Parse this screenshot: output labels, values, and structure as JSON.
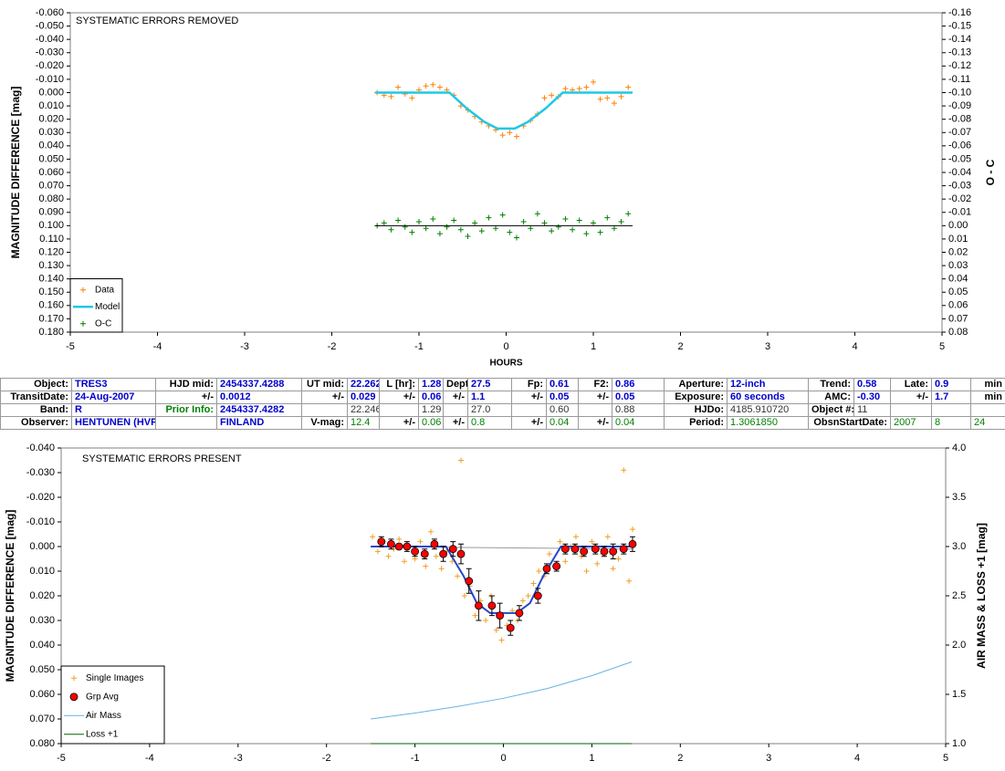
{
  "chart_data": [
    {
      "type": "scatter",
      "title": "SYSTEMATIC ERRORS REMOVED",
      "xlabel": "HOURS",
      "ylabel": "MAGNITUDE DIFFERENCE [mag]",
      "y2label": "O - C",
      "xlim": [
        -5,
        5
      ],
      "xticks": [
        -5,
        -4,
        -3,
        -2,
        -1,
        0,
        1,
        2,
        3,
        4,
        5
      ],
      "ylim": [
        -0.06,
        0.18
      ],
      "y_inverted": true,
      "yticks": [
        {
          "value": -0.06,
          "label": "-0.060"
        },
        {
          "value": -0.05,
          "label": "-0.050"
        },
        {
          "value": -0.04,
          "label": "-0.040"
        },
        {
          "value": -0.03,
          "label": "-0.030"
        },
        {
          "value": -0.02,
          "label": "-0.020"
        },
        {
          "value": -0.01,
          "label": "-0.010"
        },
        {
          "value": 0,
          "label": "0.000"
        },
        {
          "value": 0.01,
          "label": "0.010"
        },
        {
          "value": 0.02,
          "label": "0.020"
        },
        {
          "value": 0.03,
          "label": "0.030"
        },
        {
          "value": 0.04,
          "label": "0.040"
        },
        {
          "value": 0.05,
          "label": "0.050"
        },
        {
          "value": 0.06,
          "label": "0.060"
        },
        {
          "value": 0.07,
          "label": "0.070"
        },
        {
          "value": 0.08,
          "label": "0.080"
        },
        {
          "value": 0.09,
          "label": "0.090"
        },
        {
          "value": 0.1,
          "label": "0.100"
        },
        {
          "value": 0.11,
          "label": "0.110"
        },
        {
          "value": 0.12,
          "label": "0.120"
        },
        {
          "value": 0.13,
          "label": "0.130"
        },
        {
          "value": 0.14,
          "label": "0.140"
        },
        {
          "value": 0.15,
          "label": "0.150"
        },
        {
          "value": 0.16,
          "label": "0.160"
        },
        {
          "value": 0.17,
          "label": "0.170"
        },
        {
          "value": 0.18,
          "label": "0.180"
        }
      ],
      "y2lim": [
        -0.16,
        0.08
      ],
      "y2_inverted": true,
      "y2ticks": [
        -0.16,
        -0.15,
        -0.14,
        -0.13,
        -0.12,
        -0.11,
        {
          "value": -0.1,
          "label": "-0.10"
        },
        -0.09,
        -0.08,
        -0.07,
        -0.06,
        -0.05,
        -0.04,
        -0.03,
        -0.02,
        -0.01,
        {
          "value": 0,
          "label": "0.00"
        },
        0.01,
        0.02,
        0.03,
        0.04,
        0.05,
        0.06,
        0.07,
        0.08
      ],
      "legend": "lower left",
      "series": [
        {
          "name": "Data",
          "style": "plus",
          "color": "#ff8000",
          "x": [
            -1.48,
            -1.4,
            -1.32,
            -1.24,
            -1.16,
            -1.08,
            -1.0,
            -0.92,
            -0.84,
            -0.76,
            -0.68,
            -0.6,
            -0.52,
            -0.44,
            -0.36,
            -0.28,
            -0.2,
            -0.12,
            -0.04,
            0.04,
            0.12,
            0.2,
            0.28,
            0.36,
            0.44,
            0.52,
            0.6,
            0.68,
            0.76,
            0.84,
            0.92,
            1.0,
            1.08,
            1.16,
            1.24,
            1.32,
            1.4
          ],
          "values": [
            0.0,
            0.002,
            0.003,
            -0.004,
            0.001,
            0.004,
            -0.002,
            -0.005,
            -0.006,
            -0.004,
            -0.002,
            0.002,
            0.01,
            0.013,
            0.018,
            0.022,
            0.025,
            0.028,
            0.032,
            0.03,
            0.033,
            0.025,
            0.021,
            0.016,
            0.004,
            0.002,
            0.003,
            -0.003,
            -0.002,
            -0.003,
            -0.004,
            -0.008,
            0.005,
            0.004,
            0.008,
            0.003,
            -0.004
          ]
        },
        {
          "name": "Model",
          "style": "line",
          "color": "#1ec8e6",
          "width": 2.5,
          "x": [
            -1.5,
            -0.65,
            -0.45,
            -0.25,
            -0.1,
            0.1,
            0.25,
            0.45,
            0.65,
            1.45
          ],
          "values": [
            0,
            0,
            0.012,
            0.022,
            0.027,
            0.027,
            0.022,
            0.012,
            0,
            0
          ]
        },
        {
          "name": "O-C",
          "style": "plus",
          "color": "#008000",
          "axis": "y2",
          "x": [
            -1.48,
            -1.4,
            -1.32,
            -1.24,
            -1.16,
            -1.08,
            -1.0,
            -0.92,
            -0.84,
            -0.76,
            -0.68,
            -0.6,
            -0.52,
            -0.44,
            -0.36,
            -0.28,
            -0.2,
            -0.12,
            -0.04,
            0.04,
            0.12,
            0.2,
            0.28,
            0.36,
            0.44,
            0.52,
            0.6,
            0.68,
            0.76,
            0.84,
            0.92,
            1.0,
            1.08,
            1.16,
            1.24,
            1.32,
            1.4
          ],
          "values": [
            0.0,
            -0.002,
            0.003,
            -0.004,
            0.001,
            0.005,
            -0.003,
            0.002,
            -0.005,
            0.006,
            0.001,
            -0.004,
            0.003,
            0.008,
            -0.002,
            0.004,
            -0.006,
            0.002,
            -0.008,
            0.005,
            0.009,
            -0.003,
            0.002,
            -0.009,
            -0.002,
            0.004,
            0.001,
            -0.005,
            0.003,
            -0.004,
            0.006,
            -0.002,
            0.005,
            -0.006,
            0.002,
            -0.003,
            -0.009
          ]
        },
        {
          "style": "line",
          "color": "#000000",
          "width": 1,
          "axis": "y2",
          "x": [
            -1.5,
            1.45
          ],
          "values": [
            0,
            0
          ]
        }
      ]
    },
    {
      "type": "scatter",
      "title": "SYSTEMATIC ERRORS PRESENT",
      "ylabel": "MAGNITUDE DIFFERENCE [mag]",
      "y2label": "AIR MASS & LOSS +1 [mag]",
      "xlim": [
        -5,
        5
      ],
      "xticks": [
        -5,
        -4,
        -3,
        -2,
        -1,
        0,
        1,
        2,
        3,
        4,
        5
      ],
      "ylim": [
        -0.04,
        0.08
      ],
      "y_inverted": true,
      "yticks": [
        {
          "value": -0.04,
          "label": "-0.040"
        },
        {
          "value": -0.03,
          "label": "-0.030"
        },
        {
          "value": -0.02,
          "label": "-0.020"
        },
        {
          "value": -0.01,
          "label": "-0.010"
        },
        {
          "value": 0,
          "label": "0.000"
        },
        {
          "value": 0.01,
          "label": "0.010"
        },
        {
          "value": 0.02,
          "label": "0.020"
        },
        {
          "value": 0.03,
          "label": "0.030"
        },
        {
          "value": 0.04,
          "label": "0.040"
        },
        {
          "value": 0.05,
          "label": "0.050"
        },
        {
          "value": 0.06,
          "label": "0.060"
        },
        {
          "value": 0.07,
          "label": "0.070"
        },
        {
          "value": 0.08,
          "label": "0.080"
        }
      ],
      "y2lim": [
        1.0,
        4.0
      ],
      "y2_inverted": false,
      "y2ticks": [
        {
          "value": 1,
          "label": "1.0"
        },
        1.5,
        {
          "value": 2,
          "label": "2.0"
        },
        2.5,
        {
          "value": 3,
          "label": "3.0"
        },
        3.5,
        {
          "value": 4,
          "label": "4.0"
        }
      ],
      "legend": "lower left",
      "series": [
        {
          "name": "Single Images",
          "style": "plus",
          "color": "#f0a020",
          "x": [
            -1.48,
            -1.42,
            -1.36,
            -1.3,
            -1.24,
            -1.18,
            -1.12,
            -1.06,
            -1.0,
            -0.94,
            -0.88,
            -0.82,
            -0.76,
            -0.7,
            -0.64,
            -0.58,
            -0.52,
            -0.48,
            -0.44,
            -0.38,
            -0.32,
            -0.26,
            -0.2,
            -0.14,
            -0.08,
            -0.02,
            0.04,
            0.1,
            0.16,
            0.22,
            0.28,
            0.34,
            0.4,
            0.46,
            0.52,
            0.58,
            0.64,
            0.7,
            0.76,
            0.82,
            0.88,
            0.94,
            1.0,
            1.06,
            1.12,
            1.18,
            1.24,
            1.3,
            1.36,
            1.42,
            1.46
          ],
          "values": [
            -0.004,
            0.002,
            -0.002,
            0.004,
            0.001,
            -0.003,
            0.006,
            0.0,
            0.005,
            -0.002,
            0.008,
            -0.006,
            0.004,
            0.009,
            0.002,
            0.006,
            0.012,
            -0.035,
            0.02,
            0.016,
            0.028,
            0.022,
            0.03,
            0.02,
            0.034,
            0.038,
            0.032,
            0.026,
            0.03,
            0.022,
            0.02,
            0.015,
            0.01,
            0.012,
            0.003,
            0.008,
            -0.002,
            0.006,
            0.0,
            -0.004,
            0.004,
            0.01,
            -0.002,
            0.007,
            0.003,
            -0.004,
            0.009,
            0.005,
            -0.031,
            0.014,
            -0.007
          ]
        },
        {
          "style": "line",
          "color": "#999999",
          "width": 1,
          "x": [
            -1.5,
            1.45
          ],
          "values": [
            0.0,
            0.001
          ]
        },
        {
          "style": "line",
          "color": "#2448c8",
          "width": 2,
          "x": [
            -1.5,
            -0.65,
            -0.45,
            -0.3,
            -0.15,
            0.15,
            0.3,
            0.45,
            0.65,
            1.45
          ],
          "values": [
            0,
            0,
            0.012,
            0.023,
            0.027,
            0.027,
            0.023,
            0.012,
            0,
            0
          ]
        },
        {
          "name": "Grp Avg",
          "style": "circle",
          "color": "#ff0000",
          "x": [
            -1.38,
            -1.27,
            -1.18,
            -1.09,
            -1.0,
            -0.89,
            -0.78,
            -0.68,
            -0.57,
            -0.48,
            -0.39,
            -0.28,
            -0.13,
            -0.04,
            0.08,
            0.18,
            0.39,
            0.49,
            0.6,
            0.7,
            0.81,
            0.91,
            1.04,
            1.14,
            1.24,
            1.36,
            1.46
          ],
          "values": [
            -0.002,
            -0.001,
            0.0,
            0.0,
            0.002,
            0.003,
            -0.001,
            0.003,
            0.001,
            0.003,
            0.014,
            0.024,
            0.024,
            0.028,
            0.033,
            0.027,
            0.02,
            0.009,
            0.008,
            0.001,
            0.001,
            0.002,
            0.001,
            0.002,
            0.002,
            0.001,
            -0.001
          ],
          "errors": [
            0.002,
            0.002,
            0.001,
            0.002,
            0.002,
            0.002,
            0.002,
            0.003,
            0.003,
            0.004,
            0.005,
            0.006,
            0.004,
            0.005,
            0.003,
            0.003,
            0.003,
            0.002,
            0.002,
            0.002,
            0.002,
            0.002,
            0.002,
            0.002,
            0.003,
            0.002,
            0.003
          ]
        },
        {
          "name": "Air Mass",
          "style": "line",
          "color": "#66b3e6",
          "width": 1,
          "axis": "y2",
          "x": [
            -1.5,
            -1.0,
            -0.5,
            0,
            0.5,
            1.0,
            1.45
          ],
          "values": [
            1.25,
            1.31,
            1.38,
            1.46,
            1.56,
            1.69,
            1.83
          ]
        },
        {
          "name": "Loss +1",
          "style": "line",
          "color": "#006400",
          "width": 1,
          "axis": "y2",
          "x": [
            -1.5,
            1.45
          ],
          "values": [
            1.0,
            1.0
          ]
        }
      ]
    }
  ],
  "table": {
    "rows": [
      [
        "Object:",
        "TRES3",
        "HJD mid:",
        "2454337.4288",
        "UT mid:",
        "22.262",
        "L [hr]:",
        "1.28",
        "Depth:",
        "27.5",
        "Fp:",
        "0.61",
        "F2:",
        "0.86",
        "Aperture:",
        "12-inch",
        "Trend:",
        "0.58",
        "Late:",
        "0.9",
        "min"
      ],
      [
        "TransitDate:",
        "24-Aug-2007",
        "+/-",
        "0.0012",
        "+/-",
        "0.029",
        "+/-",
        "0.06",
        "+/-",
        "1.1",
        "+/-",
        "0.05",
        "+/-",
        "0.05",
        "Exposure:",
        "60 seconds",
        "AMC:",
        "-0.30",
        "+/-",
        "1.7",
        "min"
      ],
      [
        "Band:",
        "R",
        "Prior Info:",
        "2454337.4282",
        null,
        "22.246",
        null,
        "1.29",
        null,
        "27.0",
        null,
        "0.60",
        null,
        "0.88",
        "HJDo:",
        "4185.910720",
        "Object #:",
        "11",
        null,
        null,
        null
      ],
      [
        "Observer:",
        "HENTUNEN (HVP)",
        null,
        "FINLAND",
        "V-mag:",
        "12.4",
        "+/-",
        "0.06",
        "+/-",
        "0.8",
        "+/-",
        "0.04",
        "+/-",
        "0.04",
        "Period:",
        "1.3061850",
        "ObsnStartDate:",
        "2007",
        "8",
        "24"
      ]
    ]
  }
}
